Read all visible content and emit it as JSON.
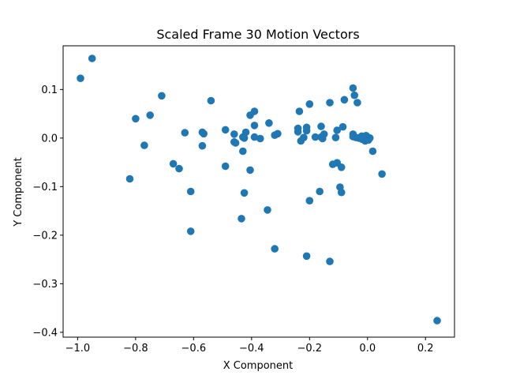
{
  "chart_data": {
    "type": "scatter",
    "title": "Scaled Frame 30 Motion Vectors",
    "xlabel": "X Component",
    "ylabel": "Y Component",
    "xlim": [
      -1.05,
      0.3
    ],
    "ylim": [
      -0.41,
      0.19
    ],
    "x_ticks": [
      -1.0,
      -0.8,
      -0.6,
      -0.4,
      -0.2,
      0.0,
      0.2
    ],
    "x_tick_labels": [
      "−1.0",
      "−0.8",
      "−0.6",
      "−0.4",
      "−0.2",
      "0.0",
      "0.2"
    ],
    "y_ticks": [
      0.1,
      0.0,
      -0.1,
      -0.2,
      -0.3,
      -0.4
    ],
    "y_tick_labels": [
      "0.1",
      "0.0",
      "−0.1",
      "−0.2",
      "−0.3",
      "−0.4"
    ],
    "grid": false,
    "marker_color": "#1f77b4",
    "points": [
      [
        -0.99,
        0.123
      ],
      [
        -0.95,
        0.164
      ],
      [
        -0.8,
        0.04
      ],
      [
        -0.75,
        0.047
      ],
      [
        -0.71,
        0.087
      ],
      [
        -0.77,
        -0.015
      ],
      [
        -0.82,
        -0.084
      ],
      [
        -0.67,
        -0.053
      ],
      [
        -0.65,
        -0.063
      ],
      [
        -0.63,
        0.011
      ],
      [
        -0.61,
        -0.11
      ],
      [
        -0.61,
        -0.192
      ],
      [
        -0.57,
        0.012
      ],
      [
        -0.565,
        0.009
      ],
      [
        -0.57,
        -0.016
      ],
      [
        -0.54,
        0.077
      ],
      [
        -0.49,
        0.017
      ],
      [
        -0.49,
        -0.058
      ],
      [
        -0.46,
        0.008
      ],
      [
        -0.46,
        -0.008
      ],
      [
        -0.455,
        -0.01
      ],
      [
        -0.43,
        0.002
      ],
      [
        -0.425,
        0.0
      ],
      [
        -0.42,
        0.012
      ],
      [
        -0.43,
        -0.027
      ],
      [
        -0.425,
        -0.113
      ],
      [
        -0.435,
        -0.166
      ],
      [
        -0.405,
        0.047
      ],
      [
        -0.39,
        0.055
      ],
      [
        -0.39,
        0.026
      ],
      [
        -0.39,
        0.002
      ],
      [
        -0.37,
        -0.001
      ],
      [
        -0.405,
        -0.066
      ],
      [
        -0.34,
        0.031
      ],
      [
        -0.32,
        0.006
      ],
      [
        -0.31,
        0.009
      ],
      [
        -0.345,
        -0.148
      ],
      [
        -0.32,
        -0.228
      ],
      [
        -0.24,
        0.02
      ],
      [
        -0.24,
        0.013
      ],
      [
        -0.235,
        0.055
      ],
      [
        -0.23,
        -0.006
      ],
      [
        -0.22,
        0.001
      ],
      [
        -0.21,
        0.022
      ],
      [
        -0.21,
        0.015
      ],
      [
        -0.2,
        0.07
      ],
      [
        -0.2,
        -0.129
      ],
      [
        -0.21,
        -0.243
      ],
      [
        -0.18,
        0.002
      ],
      [
        -0.16,
        0.024
      ],
      [
        -0.16,
        0.002
      ],
      [
        -0.155,
        -0.001
      ],
      [
        -0.15,
        0.008
      ],
      [
        -0.165,
        -0.11
      ],
      [
        -0.13,
        0.073
      ],
      [
        -0.12,
        -0.054
      ],
      [
        -0.11,
        0.001
      ],
      [
        -0.105,
        0.016
      ],
      [
        -0.105,
        -0.051
      ],
      [
        -0.095,
        -0.101
      ],
      [
        -0.09,
        -0.112
      ],
      [
        -0.09,
        -0.06
      ],
      [
        -0.085,
        0.023
      ],
      [
        -0.08,
        0.079
      ],
      [
        -0.13,
        -0.254
      ],
      [
        -0.05,
        0.103
      ],
      [
        -0.045,
        0.088
      ],
      [
        -0.035,
        0.073
      ],
      [
        -0.05,
        0.008
      ],
      [
        -0.05,
        0.003
      ],
      [
        -0.04,
        0.001
      ],
      [
        -0.03,
        0.0
      ],
      [
        -0.02,
        0.004
      ],
      [
        -0.015,
        -0.003
      ],
      [
        -0.01,
        0.001
      ],
      [
        -0.005,
        0.005
      ],
      [
        0.0,
        0.002
      ],
      [
        0.005,
        -0.002
      ],
      [
        0.008,
        0.0
      ],
      [
        -0.008,
        -0.006
      ],
      [
        0.003,
        -0.004
      ],
      [
        -0.02,
        -0.002
      ],
      [
        0.018,
        -0.027
      ],
      [
        0.05,
        -0.074
      ],
      [
        0.24,
        -0.376
      ]
    ]
  }
}
